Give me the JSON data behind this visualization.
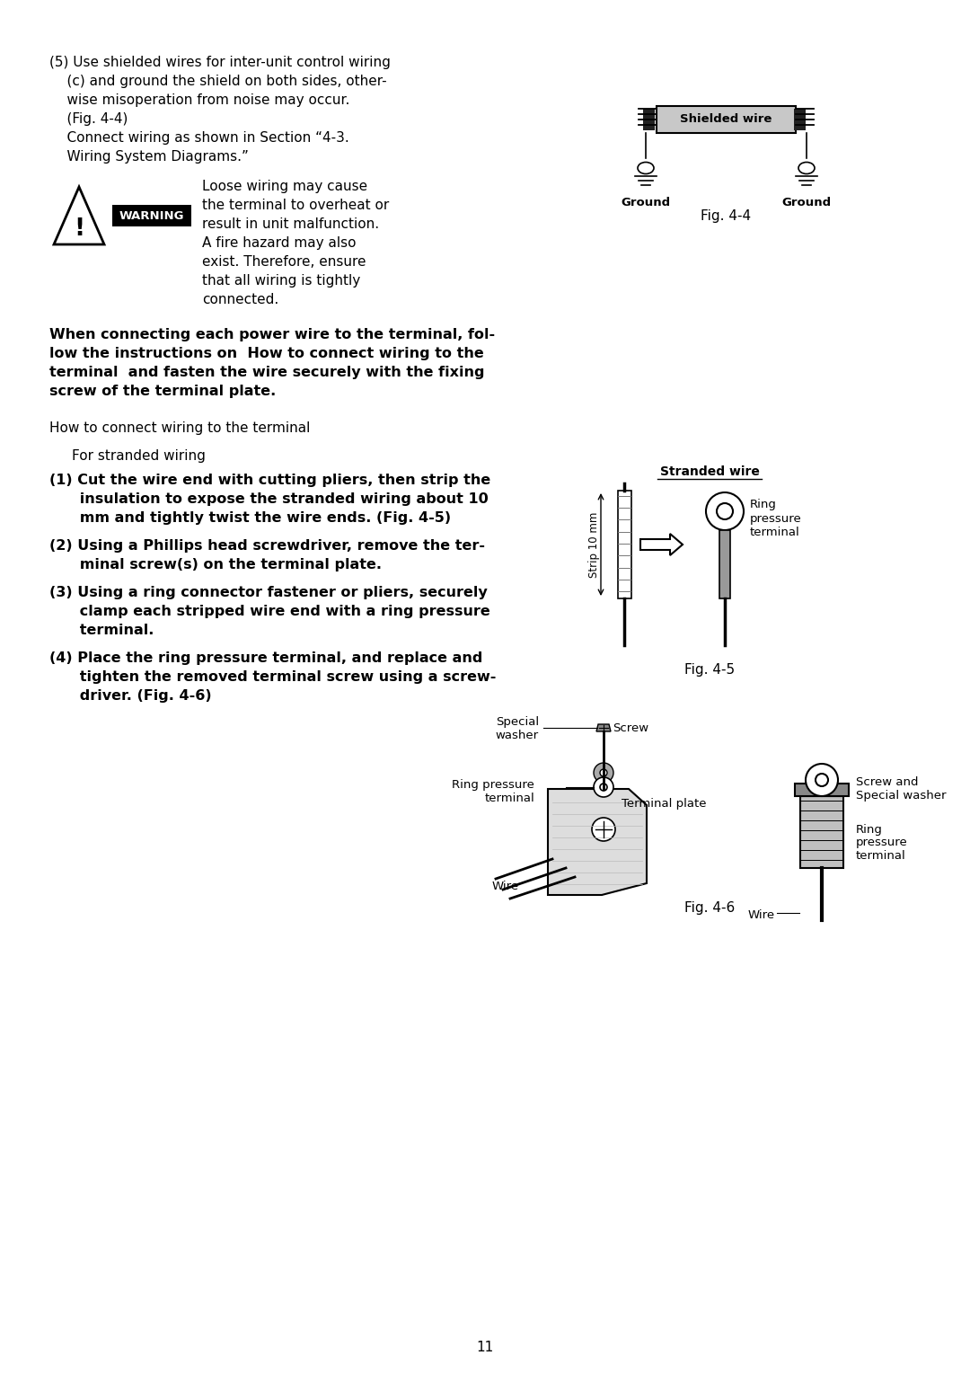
{
  "bg_color": "#ffffff",
  "text_color": "#000000",
  "page_number": "11",
  "fig44_caption": "Fig. 4-4",
  "fig45_caption": "Fig. 4-5",
  "fig46_caption": "Fig. 4-6",
  "para5_lines": [
    "(5) Use shielded wires for inter-unit control wiring",
    "    (c) and ground the shield on both sides, other-",
    "    wise misoperation from noise may occur.",
    "    (Fig. 4-4)",
    "    Connect wiring as shown in Section “4-3.",
    "    Wiring System Diagrams.”"
  ],
  "warning_text_lines": [
    "Loose wiring may cause",
    "the terminal to overheat or",
    "result in unit malfunction.",
    "A fire hazard may also",
    "exist. Therefore, ensure",
    "that all wiring is tightly",
    "connected."
  ],
  "bold_para_lines": [
    "When connecting each power wire to the terminal, fol-",
    "low the instructions on  How to connect wiring to the",
    "terminal  and fasten the wire securely with the fixing",
    "screw of the terminal plate."
  ],
  "how_to_line": "How to connect wiring to the terminal",
  "stranded_header": "For stranded wiring",
  "step1_lines": [
    "(1) Cut the wire end with cutting pliers, then strip the",
    "      insulation to expose the stranded wiring about 10",
    "      mm and tightly twist the wire ends. (Fig. 4-5)"
  ],
  "step2_lines": [
    "(2) Using a Phillips head screwdriver, remove the ter-",
    "      minal screw(s) on the terminal plate."
  ],
  "step3_lines": [
    "(3) Using a ring connector fastener or pliers, securely",
    "      clamp each stripped wire end with a ring pressure",
    "      terminal."
  ],
  "step4_lines": [
    "(4) Place the ring pressure terminal, and replace and",
    "      tighten the removed terminal screw using a screw-",
    "      driver. (Fig. 4-6)"
  ]
}
